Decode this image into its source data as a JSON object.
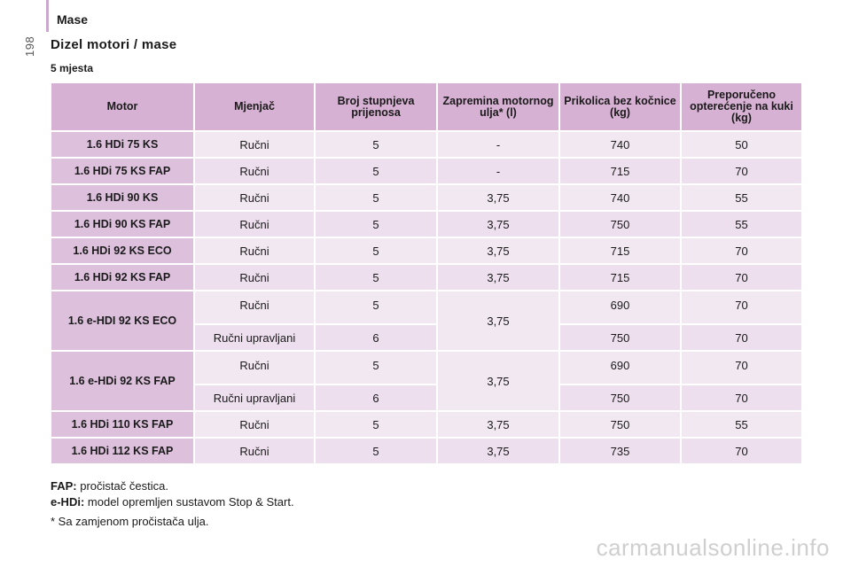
{
  "page_number": "198",
  "section_title": "Mase",
  "heading": "Dizel motori / mase",
  "subheading": "5 mjesta",
  "table": {
    "headers": [
      "Motor",
      "Mjenjač",
      "Broj stupnjeva prijenosa",
      "Zapremina motornog ulja* (l)",
      "Prikolica bez kočnice (kg)",
      "Preporučeno opterećenje na kuki (kg)"
    ],
    "groups": [
      {
        "motor": "1.6 HDi 75 KS",
        "oil": "-",
        "rows": [
          {
            "gearbox": "Ručni",
            "gears": "5",
            "trailer": "740",
            "hitch": "50"
          }
        ]
      },
      {
        "motor": "1.6 HDi 75 KS FAP",
        "oil": "-",
        "rows": [
          {
            "gearbox": "Ručni",
            "gears": "5",
            "trailer": "715",
            "hitch": "70"
          }
        ]
      },
      {
        "motor": "1.6 HDi 90 KS",
        "oil": "3,75",
        "rows": [
          {
            "gearbox": "Ručni",
            "gears": "5",
            "trailer": "740",
            "hitch": "55"
          }
        ]
      },
      {
        "motor": "1.6 HDi 90 KS FAP",
        "oil": "3,75",
        "rows": [
          {
            "gearbox": "Ručni",
            "gears": "5",
            "trailer": "750",
            "hitch": "55"
          }
        ]
      },
      {
        "motor": "1.6 HDi 92 KS ECO",
        "oil": "3,75",
        "rows": [
          {
            "gearbox": "Ručni",
            "gears": "5",
            "trailer": "715",
            "hitch": "70"
          }
        ]
      },
      {
        "motor": "1.6 HDi 92 KS FAP",
        "oil": "3,75",
        "rows": [
          {
            "gearbox": "Ručni",
            "gears": "5",
            "trailer": "715",
            "hitch": "70"
          }
        ]
      },
      {
        "motor": "1.6 e-HDI 92 KS ECO",
        "oil": "3,75",
        "rows": [
          {
            "gearbox": "Ručni",
            "gears": "5",
            "trailer": "690",
            "hitch": "70"
          },
          {
            "gearbox": "Ručni upravljani",
            "gears": "6",
            "trailer": "750",
            "hitch": "70"
          }
        ]
      },
      {
        "motor": "1.6 e-HDi 92 KS FAP",
        "oil": "3,75",
        "rows": [
          {
            "gearbox": "Ručni",
            "gears": "5",
            "trailer": "690",
            "hitch": "70"
          },
          {
            "gearbox": "Ručni upravljani",
            "gears": "6",
            "trailer": "750",
            "hitch": "70"
          }
        ]
      },
      {
        "motor": "1.6 HDi 110 KS FAP",
        "oil": "3,75",
        "rows": [
          {
            "gearbox": "Ručni",
            "gears": "5",
            "trailer": "750",
            "hitch": "55"
          }
        ]
      },
      {
        "motor": "1.6 HDi 112 KS FAP",
        "oil": "3,75",
        "rows": [
          {
            "gearbox": "Ručni",
            "gears": "5",
            "trailer": "735",
            "hitch": "70"
          }
        ]
      }
    ]
  },
  "notes": [
    {
      "term": "FAP:",
      "text": "pročistač čestica."
    },
    {
      "term": "e-HDi:",
      "text": "model opremljen sustavom Stop & Start."
    }
  ],
  "footnote": "* Sa zamjenom pročistača ulja.",
  "watermark": "carmanualsonline.info"
}
